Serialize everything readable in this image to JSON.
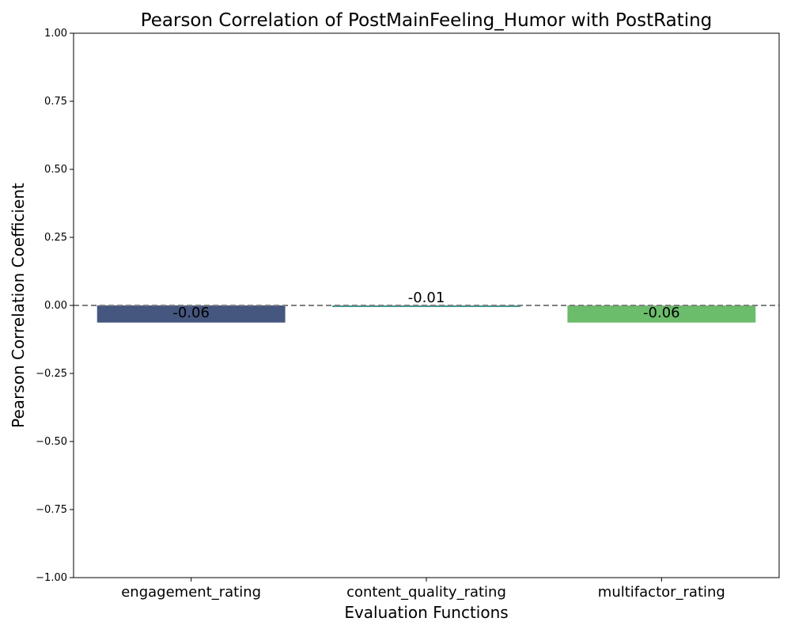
{
  "chart_data": {
    "type": "bar",
    "title": "Pearson Correlation of PostMainFeeling_Humor with PostRating",
    "xlabel": "Evaluation Functions",
    "ylabel": "Pearson Correlation Coefficient",
    "categories": [
      "engagement_rating",
      "content_quality_rating",
      "multifactor_rating"
    ],
    "values": [
      -0.063,
      -0.006,
      -0.063
    ],
    "data_labels": [
      "-0.06",
      "-0.01",
      "-0.06"
    ],
    "colors": [
      "#45567f",
      "#3c9a90",
      "#6bbc6b"
    ],
    "ylim": [
      -1.0,
      1.0
    ],
    "yticks": [
      1.0,
      0.75,
      0.5,
      0.25,
      0.0,
      -0.25,
      -0.5,
      -0.75,
      -1.0
    ],
    "ytick_labels": [
      "1.00",
      "0.75",
      "0.50",
      "0.25",
      "0.00",
      "−0.25",
      "−0.50",
      "−0.75",
      "−1.00"
    ],
    "reference_line": {
      "value": 0.0,
      "style": "dashed",
      "color": "#808080"
    },
    "grid": false
  }
}
